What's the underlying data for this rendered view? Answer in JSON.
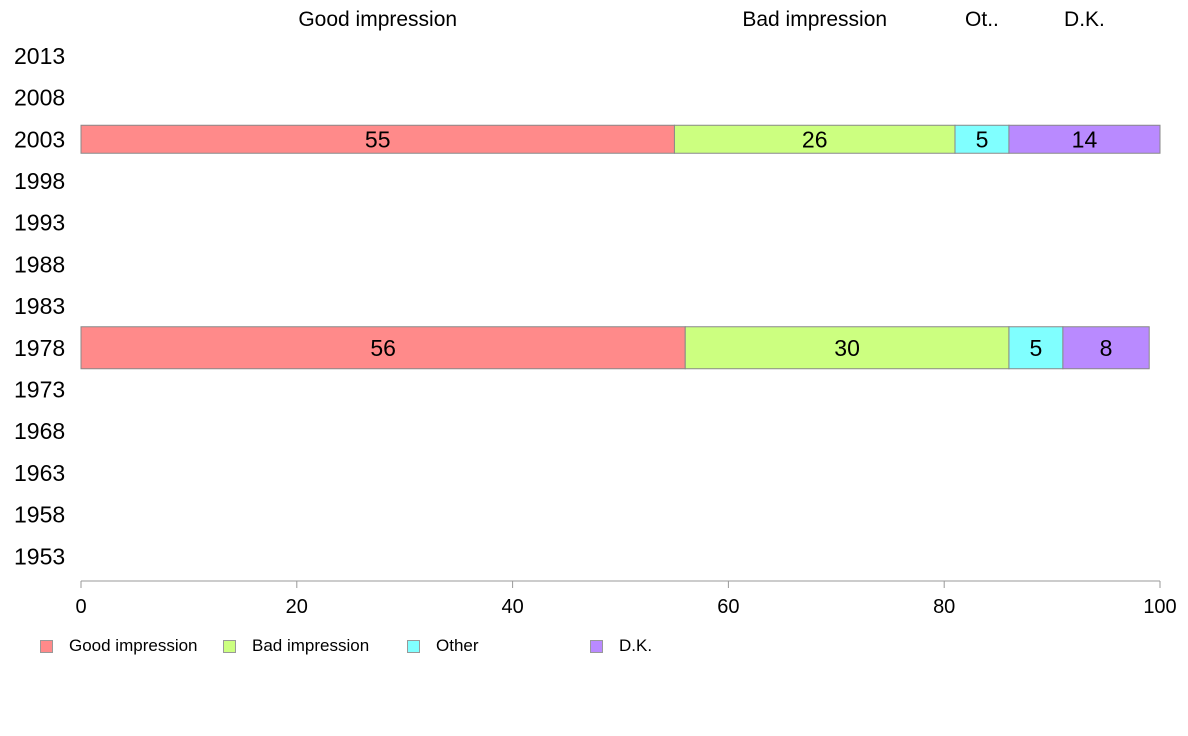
{
  "chart_data": {
    "type": "bar",
    "orientation": "horizontal",
    "stacked": true,
    "categories": [
      "2013",
      "2008",
      "2003",
      "1998",
      "1993",
      "1988",
      "1983",
      "1978",
      "1973",
      "1968",
      "1963",
      "1958",
      "1953"
    ],
    "series": [
      {
        "name": "Good impression",
        "color": "#ff8a8a",
        "values": [
          null,
          null,
          55,
          null,
          null,
          null,
          null,
          56,
          null,
          null,
          null,
          null,
          null
        ]
      },
      {
        "name": "Bad impression",
        "color": "#ccff80",
        "values": [
          null,
          null,
          26,
          null,
          null,
          null,
          null,
          30,
          null,
          null,
          null,
          null,
          null
        ]
      },
      {
        "name": "Other",
        "color": "#80ffff",
        "values": [
          null,
          null,
          5,
          null,
          null,
          null,
          null,
          5,
          null,
          null,
          null,
          null,
          null
        ]
      },
      {
        "name": "D.K.",
        "color": "#b98aff",
        "values": [
          null,
          null,
          14,
          null,
          null,
          null,
          null,
          8,
          null,
          null,
          null,
          null,
          null
        ]
      }
    ],
    "column_headers": [
      "Good impression",
      "Bad impression",
      "Ot..",
      "D.K."
    ],
    "xlim": [
      0,
      100
    ],
    "xticks": [
      0,
      20,
      40,
      60,
      80,
      100
    ],
    "xlabel": "",
    "ylabel": "",
    "title": "",
    "grid": false,
    "legend_position": "bottom-left"
  }
}
